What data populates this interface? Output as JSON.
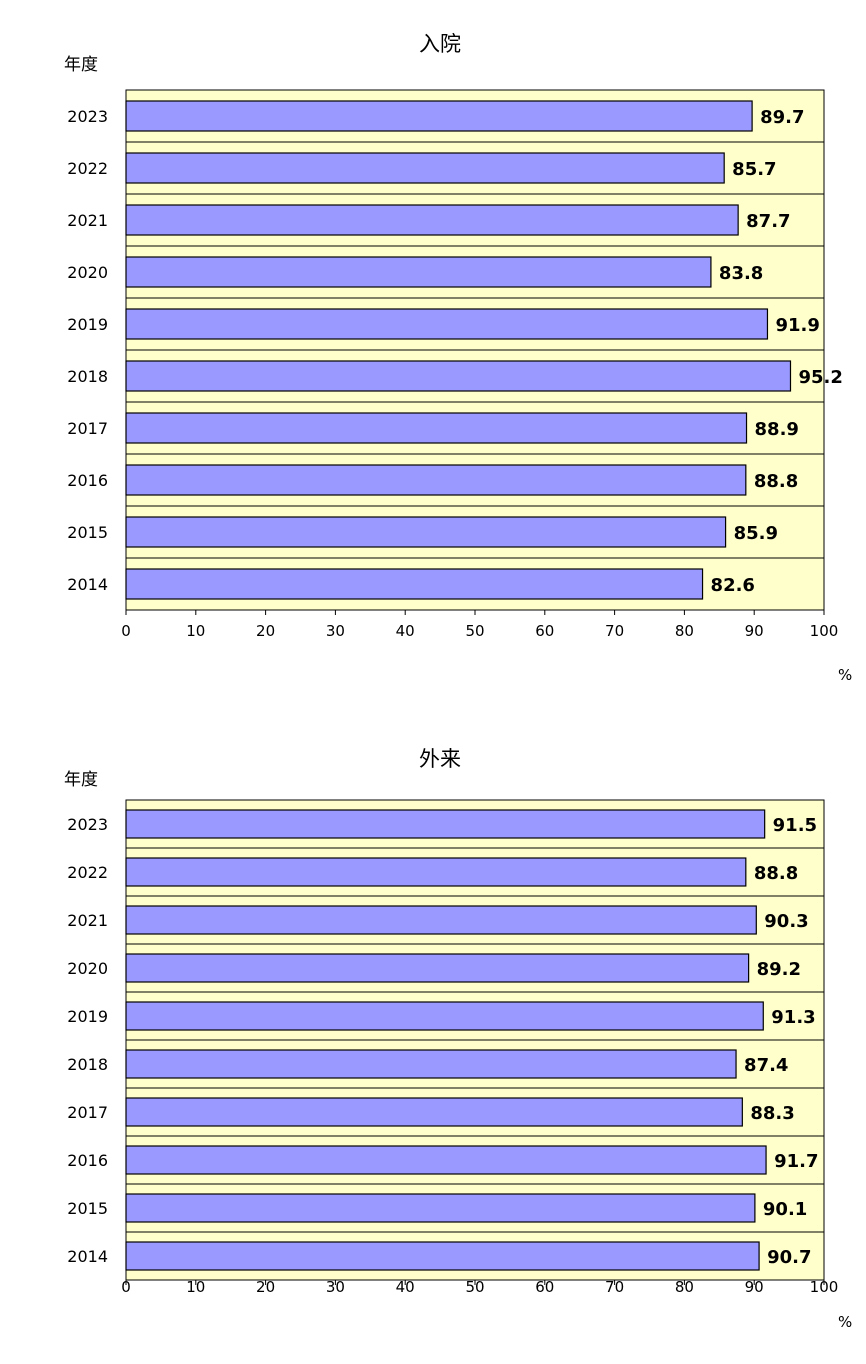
{
  "colors": {
    "plot_bg": "#ffffcc",
    "bar_fill": "#9999ff",
    "bar_stroke": "#000000",
    "grid": "#000000"
  },
  "chart_data": [
    {
      "type": "bar",
      "orientation": "horizontal",
      "title": "入院",
      "ylabel": "年度",
      "xlabel": "%",
      "categories": [
        "2023",
        "2022",
        "2021",
        "2020",
        "2019",
        "2018",
        "2017",
        "2016",
        "2015",
        "2014"
      ],
      "values": [
        89.7,
        85.7,
        87.7,
        83.8,
        91.9,
        95.2,
        88.9,
        88.8,
        85.9,
        82.6
      ],
      "value_labels": [
        "89.7",
        "85.7",
        "87.7",
        "83.8",
        "91.9",
        "95.2",
        "88.9",
        "88.8",
        "85.9",
        "82.6"
      ],
      "xlim": [
        0,
        100
      ],
      "xticks": [
        "0",
        "10",
        "20",
        "30",
        "40",
        "50",
        "60",
        "70",
        "80",
        "90",
        "100"
      ],
      "grid": "horizontal lines between bars"
    },
    {
      "type": "bar",
      "orientation": "horizontal",
      "title": "外来",
      "ylabel": "年度",
      "xlabel": "%",
      "categories": [
        "2023",
        "2022",
        "2021",
        "2020",
        "2019",
        "2018",
        "2017",
        "2016",
        "2015",
        "2014"
      ],
      "values": [
        91.5,
        88.8,
        90.3,
        89.2,
        91.3,
        87.4,
        88.3,
        91.7,
        90.1,
        90.7
      ],
      "value_labels": [
        "91.5",
        "88.8",
        "90.3",
        "89.2",
        "91.3",
        "87.4",
        "88.3",
        "91.7",
        "90.1",
        "90.7"
      ],
      "xlim": [
        0,
        100
      ],
      "xticks": [
        "0",
        "10",
        "20",
        "30",
        "40",
        "50",
        "60",
        "70",
        "80",
        "90",
        "100"
      ],
      "grid": "horizontal lines between bars"
    }
  ]
}
